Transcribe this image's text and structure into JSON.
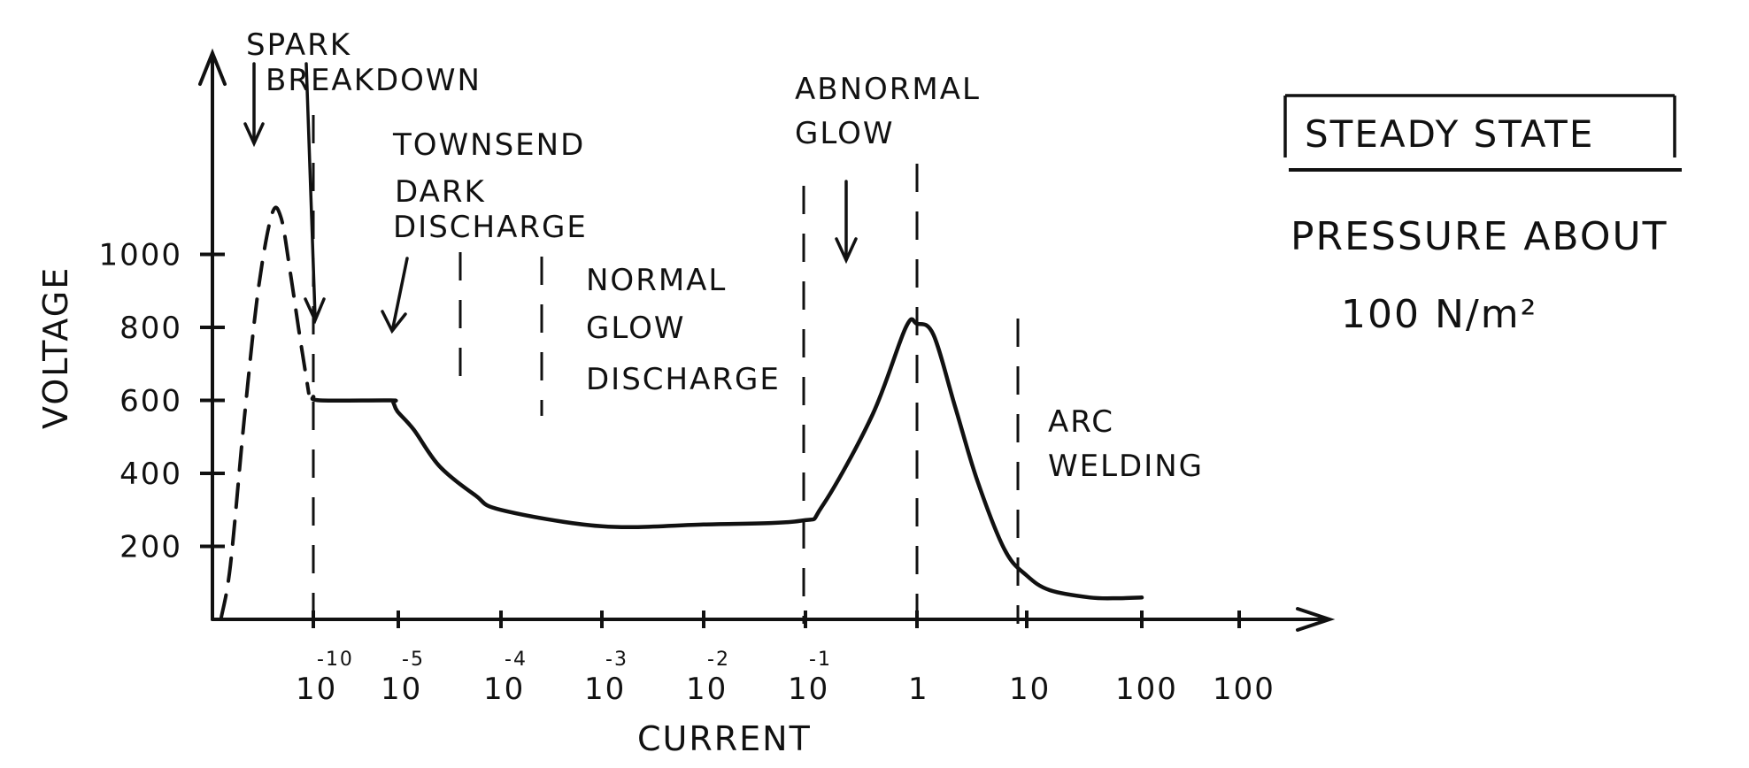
{
  "chart_data": {
    "type": "line",
    "y_axis": {
      "label": "VOLTAGE",
      "ticks": [
        "1000",
        "800",
        "600",
        "400",
        "200"
      ],
      "values": [
        1000,
        800,
        600,
        400,
        200
      ]
    },
    "x_axis": {
      "label": "CURRENT",
      "ticks": [
        {
          "base": "10",
          "exp": "-10"
        },
        {
          "base": "10",
          "exp": "-5"
        },
        {
          "base": "10",
          "exp": "-4"
        },
        {
          "base": "10",
          "exp": "-3"
        },
        {
          "base": "10",
          "exp": "-2"
        },
        {
          "base": "10",
          "exp": "-1"
        },
        {
          "base": "1",
          "exp": ""
        },
        {
          "base": "10",
          "exp": ""
        },
        {
          "base": "100",
          "exp": ""
        },
        {
          "base": "100",
          "exp": ""
        }
      ]
    },
    "regions": {
      "spark": "SPARK BREAKDOWN",
      "townsend": "TOWNSEND",
      "dark": "DARK DISCHARGE",
      "normal": "NORMAL GLOW DISCHARGE",
      "abnormal": "ABNORMAL GLOW",
      "arc": "ARC WELDING"
    },
    "curve": {
      "x": [
        -10.7,
        -10.4,
        -10.1,
        -10.0,
        -9.6,
        -5.5,
        -5.3,
        -5.05,
        -4.85,
        -4.6,
        -4.25,
        -4.0,
        -3.0,
        -2.0,
        -1.05,
        -0.85,
        -0.4,
        -0.1,
        0.0,
        0.15,
        0.35,
        0.55,
        0.8,
        1.0,
        1.2,
        1.55,
        1.8,
        2.0
      ],
      "y": [
        1100,
        1000,
        900,
        610,
        600,
        600,
        595,
        570,
        520,
        420,
        340,
        300,
        255,
        260,
        270,
        310,
        560,
        800,
        810,
        780,
        580,
        380,
        190,
        120,
        80,
        60,
        58,
        60
      ]
    },
    "spark_curve": {
      "x": [
        -11.0,
        -10.9,
        -10.75,
        -10.6,
        -10.45,
        -10.35,
        -10.25,
        -10.15,
        -10.05
      ],
      "y": [
        5,
        150,
        550,
        900,
        1110,
        1100,
        950,
        780,
        620
      ]
    }
  },
  "notes": {
    "box_title": "STEADY STATE",
    "line1": "PRESSURE ABOUT",
    "line2": "100 N/m²"
  }
}
